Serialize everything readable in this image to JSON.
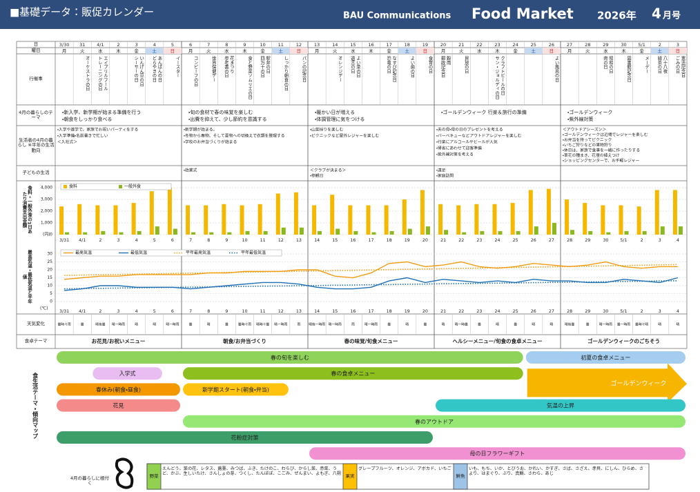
{
  "header": {
    "title": "■基礎データ：販促カレンダー",
    "company": "BAU Communications",
    "brand": "Food Market",
    "year": "2026年",
    "issue_num": "4",
    "issue_suffix": "月号"
  },
  "row_labels": {
    "day": "日",
    "weekday": "曜日",
    "events": "行催事",
    "theme": "4月の暮らしのテーマ",
    "life": "生活者の4月の暮らし ※平年の生活動向",
    "kids": "子どもの生活",
    "weather": "天気変化",
    "food_theme": "食卓テーマ",
    "map": "食生活テーマ・傾向マップ"
  },
  "calendar": {
    "days": [
      "3/30",
      "31",
      "4/1",
      "2",
      "3",
      "4",
      "5",
      "6",
      "7",
      "8",
      "9",
      "10",
      "11",
      "12",
      "13",
      "14",
      "15",
      "16",
      "17",
      "18",
      "19",
      "20",
      "21",
      "22",
      "23",
      "24",
      "25",
      "26",
      "27",
      "28",
      "29",
      "30",
      "5/1",
      "2",
      "3"
    ],
    "weekdays": [
      "月",
      "火",
      "水",
      "木",
      "金",
      "土",
      "日",
      "月",
      "火",
      "水",
      "木",
      "金",
      "土",
      "日",
      "月",
      "火",
      "水",
      "木",
      "金",
      "土",
      "日",
      "月",
      "火",
      "水",
      "木",
      "金",
      "土",
      "日",
      "月",
      "火",
      "水",
      "木",
      "金",
      "土",
      "日"
    ],
    "events": [
      [],
      [
        "オーケストラの日"
      ],
      [
        "エイプリルフール",
        "トレーニングの日"
      ],
      [],
      [
        "いんげん豆の日",
        "シーサーの日"
      ],
      [
        "あんぱんの日",
        "どらやきの日"
      ],
      [
        "イースター"
      ],
      [
        "コンビーフの日"
      ],
      [
        "世界保健デー"
      ],
      [
        "花まつり",
        "参考書の日"
      ],
      [
        "食と野菜ソムリエの日"
      ],
      [
        "駅弁の日",
        "四万十の日"
      ],
      [
        "しっかり朝食の日"
      ],
      [
        "パンの記念日"
      ],
      [],
      [
        "オレンジデー"
      ],
      [
        "よい菜の日",
        "遺言の日"
      ],
      [],
      [
        "なすび記念日",
        "恐竜の日"
      ],
      [
        "よい歯の日"
      ],
      [
        "食育の日"
      ],
      [
        "穀雨",
        "郵政記念日"
      ],
      [
        "民放の日"
      ],
      [],
      [
        "クラフトビールの日",
        "サン・ジョルディの日"
      ],
      [],
      [],
      [
        "よい風呂の日"
      ],
      [],
      [],
      [
        "昭和の日",
        "肉の日"
      ],
      [
        "図書館記念日"
      ],
      [
        "メーデー"
      ],
      [
        "八十八夜",
        "緑茶の日"
      ],
      [
        "憲法記念日",
        "ごみの日"
      ]
    ]
  },
  "themes": [
    [
      "・新入学、新学期が始まる準備を行う",
      "・朝食をしっかり食べる"
    ],
    [
      "・旬の食材で春の味覚を楽しむ",
      "・出費を抑えて、少し節約を意識する"
    ],
    [
      "・暖かい日が増える",
      "・体調管理に気をつける"
    ],
    [
      "・ゴールデンウィーク 行楽＆旅行の準備"
    ],
    [
      "・ゴールデンウィーク",
      "・紫外線対策"
    ]
  ],
  "life": [
    [
      "・入学や進学で、家族でお祝いパーティをする",
      "・入学準備・名前書きで忙しい",
      "＜入社式＞"
    ],
    [
      "・新学期が始まる。",
      "・冬物から春物、そして夏物への切換えで衣類を整理する",
      "・学校のお弁当づくりが始まる"
    ],
    [
      "・山菜採りを楽しむ",
      "・ピクニックなど屋外レジャーを楽しむ"
    ],
    [
      "・夫の母・母の日のプレゼントを考える",
      "・バーベキューなどアウトドアレジャーを楽しむ",
      "・行楽にアルコールやビールが人気",
      "・帰省にあわせて迎客準備",
      "・紫外線対策を考える"
    ],
    [
      "＜アウトドアシーズン＞",
      "・ゴールデンウィークは近場でレジャーを楽しむ",
      "・お弁当を持ってピクニック",
      "・いちご狩りなどの果物狩り",
      "・休日は、家族で食事を一緒に作ったりする",
      "・草花の種まき、花壇の植えつけ",
      "・ショッピングセンターで、お手軽レジャー"
    ]
  ],
  "kids": [
    [],
    [
      "・始業式"
    ],
    [
      "＜クラブが決まる＞",
      "・参観日"
    ],
    [
      "・遠足",
      "・家庭訪問"
    ],
    []
  ],
  "weather": [
    "曇時々雨",
    "曇",
    "晴後曇",
    "晴一時雨",
    "晴",
    "晴",
    "晴一時雨",
    "曇",
    "晴",
    "曇",
    "曇時々雨",
    "晴時々曇",
    "晴一時雨",
    "雨",
    "晴後一時雨",
    "晴一時雨",
    "雨",
    "晴一時雨",
    "曇",
    "晴",
    "曇",
    "晴",
    "晴一時曇",
    "曇",
    "晴",
    "曇",
    "晴",
    "晴",
    "晴後曇",
    "曇",
    "晴一時雨",
    "曇一時雨",
    "曇時々晴",
    "晴",
    "晴"
  ],
  "food_themes": [
    "お花見/お祝いメニュー",
    "朝食/お弁当づくり",
    "春の味覚/旬食メニュー",
    "ヘルシーメニュー/旬食の食卓メニュー",
    "ゴールデンウィークのごちそう"
  ],
  "map": {
    "bars": [
      {
        "label": "春の旬を楽しむ",
        "from": "3/30",
        "to": "4/24",
        "color": "#8fd35a"
      },
      {
        "label": "初夏の食卓メニュー",
        "from": "4/25",
        "to": "5/3",
        "color": "#a4cdf0"
      },
      {
        "label": "入学式",
        "from": "4/1",
        "to": "4/4",
        "color": "#e9bdf2"
      },
      {
        "label": "春の食卓メニュー",
        "from": "4/6",
        "to": "4/24",
        "color": "#8dbf1f"
      },
      {
        "label": "春休み(朝食・昼食)",
        "from": "3/30",
        "to": "4/5",
        "color": "#f39800"
      },
      {
        "label": "新学期スタート(朝食・弁当)",
        "from": "4/6",
        "to": "4/11",
        "color": "#ffc20e"
      },
      {
        "label": "花見",
        "from": "3/30",
        "to": "4/5",
        "color": "#f48a8a"
      },
      {
        "label": "気温の上昇",
        "from": "4/20",
        "to": "5/3",
        "color": "#33c6c6"
      },
      {
        "label": "春のアウトドア",
        "from": "4/6",
        "to": "5/3",
        "color": "#95e873"
      },
      {
        "label": "花粉症対策",
        "from": "3/30",
        "to": "4/19",
        "color": "#3e9e6a"
      },
      {
        "label": "母の日フラワーギフト",
        "from": "4/13",
        "to": "5/3",
        "color": "#f291d2"
      }
    ],
    "arrow": {
      "label": "ゴールデンウィーク",
      "from": "4/25",
      "to": "5/3",
      "color": "#f7b500"
    }
  },
  "produce": {
    "caption": "4月の暮らしに根付く",
    "groups": [
      {
        "label": "野菜",
        "color": "#92d050",
        "items": "えんどう、菜の花、レタス、蕗薹、みつば、ふき、たけのこ、わらび、からし菜、赤菜、うど、かぶ、生しいたけ、さんしょの芽、つくし、たんぽぽ、こごみ、ぜんまい、よもぎ、八朔"
      },
      {
        "label": "果実",
        "color": "#ffc000",
        "items": "グレープフルーツ、オレンジ、アボカド、いちご"
      },
      {
        "label": "鮮魚",
        "color": "#9dc3e6",
        "items": "いも、もち、いか、とびうお、かれい、かすぎ、さば、さざえ、赤貝、にしん、ひらめ、さより、はまぐり、ぶり、真鯛、さわら、あじ"
      }
    ]
  },
  "chart_data": [
    {
      "type": "bar",
      "title": "食料・一般外食の1日あたり消費支出金額",
      "unit": "(円)",
      "categories": [
        "3/31",
        "4/1",
        "2",
        "3",
        "4",
        "5",
        "6",
        "7",
        "8",
        "9",
        "10",
        "11",
        "12",
        "13",
        "14",
        "15",
        "16",
        "17",
        "18",
        "19",
        "20",
        "21",
        "22",
        "23",
        "24",
        "25",
        "26",
        "27",
        "28",
        "29",
        "30",
        "5/1",
        "2",
        "3",
        "4"
      ],
      "series": [
        {
          "name": "食料",
          "color": "#f5b800",
          "values": [
            2400,
            2600,
            2500,
            2500,
            2700,
            3700,
            4000,
            2500,
            2500,
            2600,
            2500,
            2600,
            3500,
            3600,
            2500,
            3400,
            2500,
            2500,
            2500,
            3000,
            3800,
            2600,
            2500,
            2600,
            2600,
            2700,
            3800,
            3900,
            3000,
            2700,
            2500,
            2500,
            2400,
            3800,
            3800
          ]
        },
        {
          "name": "一般外食",
          "color": "#8cb81e",
          "values": [
            200,
            200,
            300,
            200,
            300,
            700,
            500,
            200,
            200,
            200,
            300,
            300,
            600,
            600,
            300,
            500,
            300,
            200,
            300,
            500,
            700,
            400,
            200,
            300,
            300,
            300,
            700,
            1000,
            400,
            300,
            200,
            300,
            300,
            700,
            700
          ]
        }
      ],
      "ylim": [
        0,
        4000
      ],
      "yticks": [
        0,
        {
          "value": 1000,
          "label": "1,000"
        },
        {
          "value": 2000,
          "label": "2,000"
        },
        {
          "value": 3000,
          "label": "3,000"
        },
        {
          "value": 4000,
          "label": "4,000"
        }
      ],
      "grid": true,
      "legend": "upper left"
    },
    {
      "type": "line",
      "title": "最高気温・最低気温と平年値",
      "unit": "(℃)",
      "categories": [
        "3/31",
        "4/1",
        "2",
        "3",
        "4",
        "5",
        "6",
        "7",
        "8",
        "9",
        "10",
        "11",
        "12",
        "13",
        "14",
        "15",
        "16",
        "17",
        "18",
        "19",
        "20",
        "21",
        "22",
        "23",
        "24",
        "25",
        "26",
        "27",
        "28",
        "29",
        "30",
        "5/1",
        "2",
        "3",
        "4"
      ],
      "series": [
        {
          "name": "最高気温",
          "color": "#f39c12",
          "style": "solid",
          "values": [
            14,
            15,
            16,
            16,
            17,
            17,
            17,
            17,
            18,
            18,
            19,
            19,
            19,
            20,
            20,
            16,
            15,
            18,
            24,
            25,
            22,
            23,
            25,
            22,
            21,
            22,
            24,
            23,
            22,
            23,
            25,
            22,
            21,
            22,
            22
          ]
        },
        {
          "name": "最低気温",
          "color": "#1f6fb5",
          "style": "solid",
          "values": [
            7,
            8,
            10,
            10,
            9,
            9,
            9,
            8,
            9,
            10,
            11,
            12,
            12,
            11,
            9,
            8,
            8,
            9,
            13,
            15,
            12,
            14,
            13,
            12,
            13,
            12,
            14,
            13,
            13,
            12,
            12,
            14,
            13,
            12,
            15
          ]
        },
        {
          "name": "平年最高気温",
          "color": "#f39c12",
          "style": "dotted",
          "values": [
            16.5,
            16.7,
            16.9,
            17.1,
            17.3,
            17.5,
            17.7,
            17.9,
            18.1,
            18.3,
            18.5,
            18.7,
            18.9,
            19.1,
            19.3,
            19.5,
            19.7,
            19.9,
            20.1,
            20.3,
            20.5,
            20.7,
            20.9,
            21.1,
            21.3,
            21.5,
            21.7,
            21.9,
            22.1,
            22.3,
            22.5,
            22.7,
            22.9,
            23.1,
            23.3
          ]
        },
        {
          "name": "平年最低気温",
          "color": "#1f6fb5",
          "style": "dotted",
          "values": [
            8.0,
            8.2,
            8.3,
            8.5,
            8.6,
            8.8,
            8.9,
            9.1,
            9.2,
            9.4,
            9.5,
            9.7,
            9.8,
            10.0,
            10.1,
            10.3,
            10.4,
            10.6,
            10.7,
            10.9,
            11.0,
            11.2,
            11.3,
            11.5,
            11.6,
            11.8,
            11.9,
            12.1,
            12.2,
            12.4,
            12.5,
            12.7,
            12.8,
            13.0,
            13.1
          ]
        }
      ],
      "ylim": [
        0,
        30
      ],
      "yticks": [
        0,
        5,
        10,
        15,
        20,
        25,
        30
      ],
      "grid": true,
      "legend": "upper left"
    }
  ]
}
